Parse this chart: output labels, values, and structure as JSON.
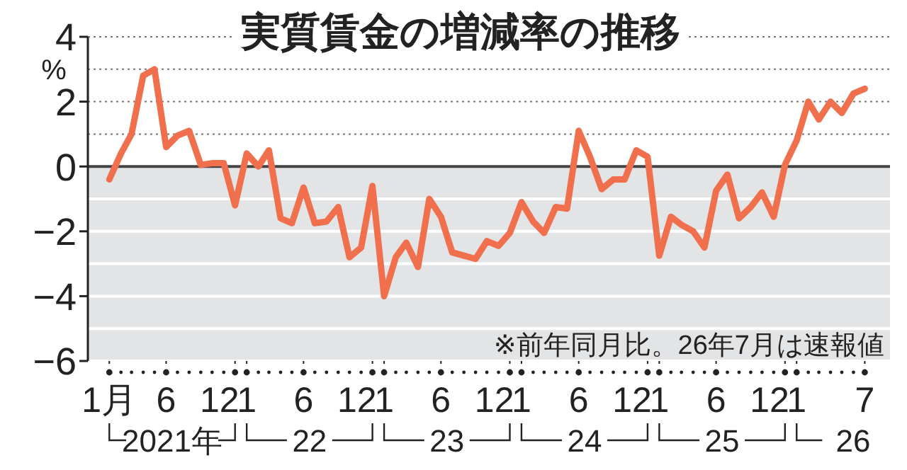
{
  "chart_data": {
    "type": "line",
    "title": "実質賃金の増減率の推移",
    "ylabel": "%",
    "annotations": [
      "※前年同月比。26年7月は速報値",
      "2021年",
      "22",
      "23",
      "24",
      "25",
      "26"
    ],
    "x": [
      "2021-01",
      "2021-02",
      "2021-03",
      "2021-04",
      "2021-05",
      "2021-06",
      "2021-07",
      "2021-08",
      "2021-09",
      "2021-10",
      "2021-11",
      "2021-12",
      "2022-01",
      "2022-02",
      "2022-03",
      "2022-04",
      "2022-05",
      "2022-06",
      "2022-07",
      "2022-08",
      "2022-09",
      "2022-10",
      "2022-11",
      "2022-12",
      "2023-01",
      "2023-02",
      "2023-03",
      "2023-04",
      "2023-05",
      "2023-06",
      "2023-07",
      "2023-08",
      "2023-09",
      "2023-10",
      "2023-11",
      "2023-12",
      "2024-01",
      "2024-02",
      "2024-03",
      "2024-04",
      "2024-05",
      "2024-06",
      "2024-07",
      "2024-08",
      "2024-09",
      "2024-10",
      "2024-11",
      "2024-12",
      "2025-01",
      "2025-02",
      "2025-03",
      "2025-04",
      "2025-05",
      "2025-06",
      "2025-07",
      "2025-08",
      "2025-09",
      "2025-10",
      "2025-11",
      "2025-12",
      "2026-01",
      "2026-02",
      "2026-03",
      "2026-04",
      "2026-05",
      "2026-06",
      "2026-07"
    ],
    "series": [
      {
        "color": "#f0704e",
        "values": [
          -0.4,
          0.4,
          1.0,
          2.8,
          3.0,
          0.6,
          0.95,
          1.1,
          0.05,
          0.1,
          0.1,
          -1.2,
          0.4,
          0.0,
          0.5,
          -1.6,
          -1.75,
          -0.65,
          -1.75,
          -1.7,
          -1.25,
          -2.8,
          -2.5,
          -0.6,
          -4.0,
          -2.8,
          -2.35,
          -3.1,
          -1.0,
          -1.55,
          -2.65,
          -2.75,
          -2.85,
          -2.3,
          -2.45,
          -2.05,
          -1.1,
          -1.7,
          -2.05,
          -1.25,
          -1.3,
          1.1,
          0.3,
          -0.7,
          -0.4,
          -0.4,
          0.5,
          0.3,
          -2.75,
          -1.55,
          -1.8,
          -2.0,
          -2.5,
          -0.75,
          -0.25,
          -1.6,
          -1.25,
          -0.8,
          -1.55,
          0.05,
          0.8,
          2.0,
          1.45,
          2.0,
          1.65,
          2.25,
          2.4
        ]
      }
    ],
    "xlim": [
      "2020-11-05",
      "2026-09-06"
    ],
    "xticks": [
      {
        "value": "2021-01",
        "label": "1月"
      },
      {
        "value": "2021-06",
        "label": "6"
      },
      {
        "value": "2021-12",
        "label": "12"
      },
      {
        "value": "2022-01",
        "label": "1"
      },
      {
        "value": "2022-06",
        "label": "6"
      },
      {
        "value": "2022-12",
        "label": "12"
      },
      {
        "value": "2023-01",
        "label": "1"
      },
      {
        "value": "2023-06",
        "label": "6"
      },
      {
        "value": "2023-12",
        "label": "12"
      },
      {
        "value": "2024-01",
        "label": "1"
      },
      {
        "value": "2024-06",
        "label": "6"
      },
      {
        "value": "2024-12",
        "label": "12"
      },
      {
        "value": "2025-01",
        "label": "1"
      },
      {
        "value": "2025-06",
        "label": "6"
      },
      {
        "value": "2025-12",
        "label": "12"
      },
      {
        "value": "2026-01",
        "label": "1"
      },
      {
        "value": "2026-07",
        "label": "7"
      }
    ],
    "ylim": [
      -6,
      4
    ],
    "yticks": [
      -6,
      {
        "value": -5,
        "label": null
      },
      -4,
      {
        "value": -3,
        "label": null
      },
      -2,
      {
        "value": -1,
        "label": null
      },
      0,
      {
        "value": 1,
        "label": null
      },
      2,
      {
        "value": 3,
        "label": null
      },
      4
    ],
    "grid": "y",
    "bands": [
      {
        "axis": "y",
        "from": -6,
        "to": 0,
        "color": "#e3e4e6"
      }
    ],
    "ref_lines": [
      {
        "axis": "y",
        "value": 0,
        "color": "#444444"
      }
    ],
    "marker": "none",
    "line_style": "solid"
  }
}
